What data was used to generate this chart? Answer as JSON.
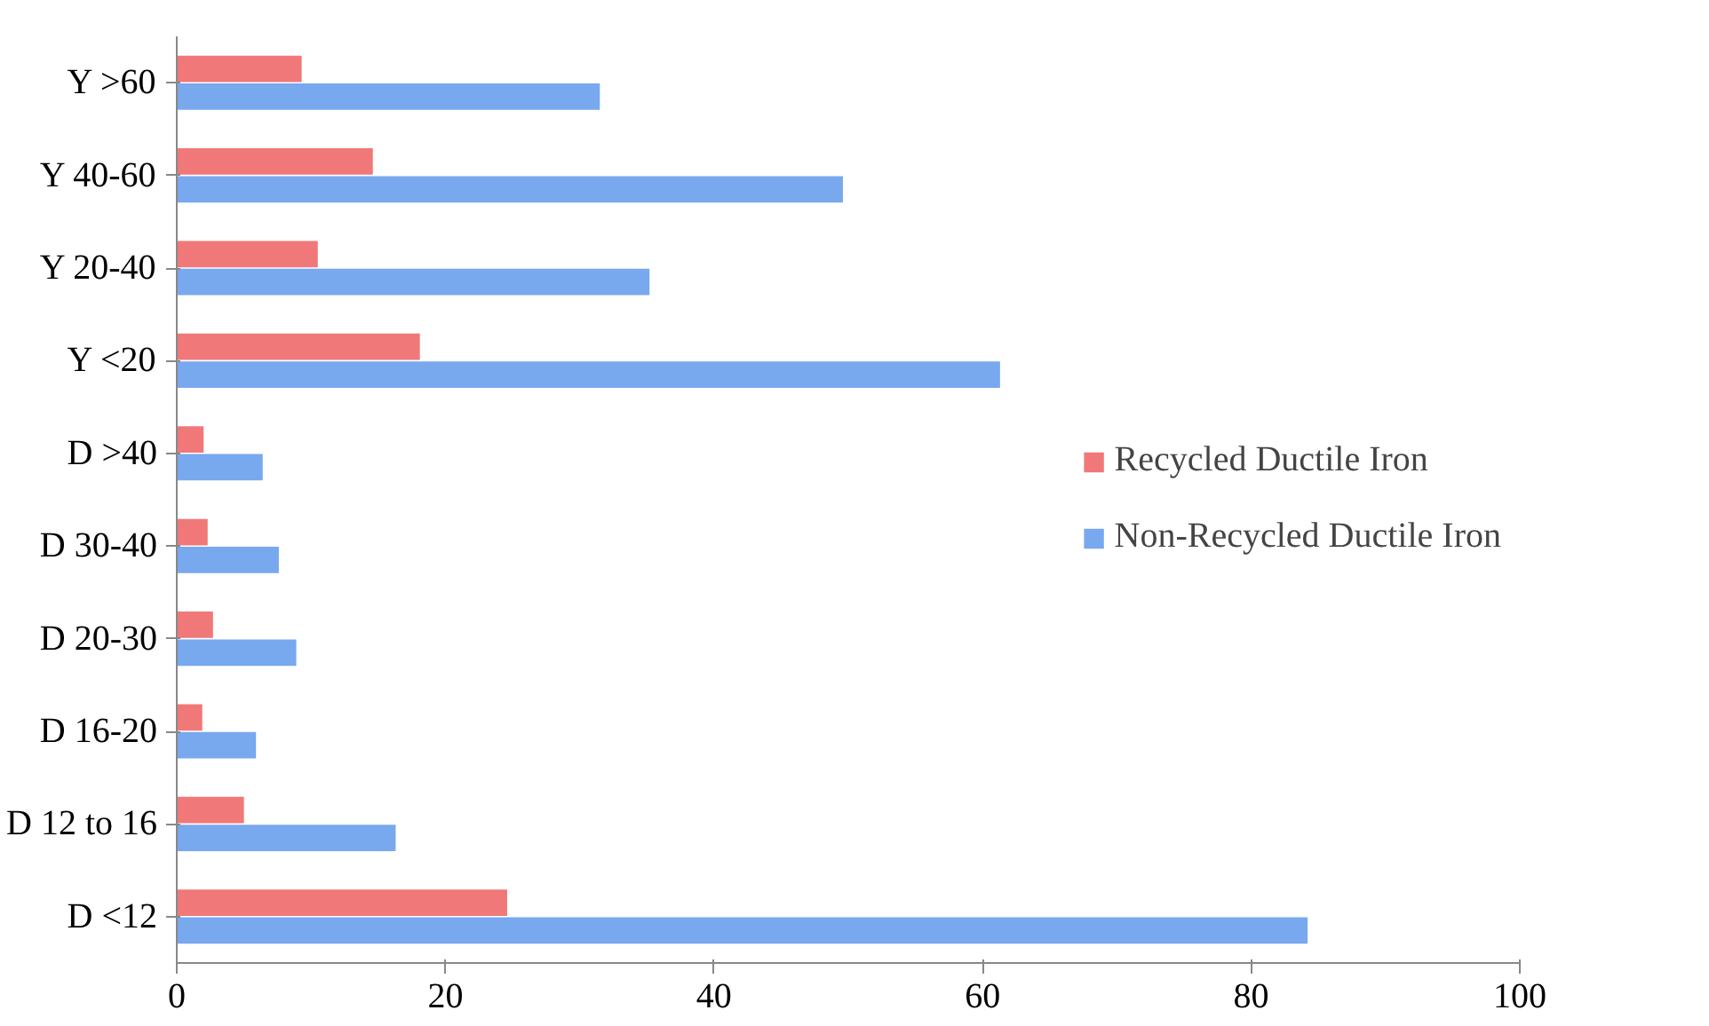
{
  "chart_data": {
    "type": "bar",
    "orientation": "horizontal",
    "categories": [
      "Y >60",
      "Y 40-60",
      "Y 20-40",
      "Y <20",
      "D >40",
      "D 30-40",
      "D 20-30",
      "D 16-20",
      "D 12 to 16",
      "D <12"
    ],
    "series": [
      {
        "name": "Recycled Ductile Iron",
        "color": "#f07878",
        "values": [
          9.3,
          14.6,
          10.5,
          18.1,
          2.0,
          2.3,
          2.7,
          1.9,
          5.0,
          24.6
        ]
      },
      {
        "name": "Non-Recycled Ductile Iron",
        "color": "#78a8ee",
        "values": [
          31.5,
          49.6,
          35.2,
          61.3,
          6.4,
          7.6,
          8.9,
          5.9,
          16.3,
          84.2
        ]
      }
    ],
    "xlim": [
      0,
      100
    ],
    "xticks": [
      0,
      20,
      40,
      60,
      80,
      100
    ],
    "grid": false,
    "legend": "right"
  }
}
